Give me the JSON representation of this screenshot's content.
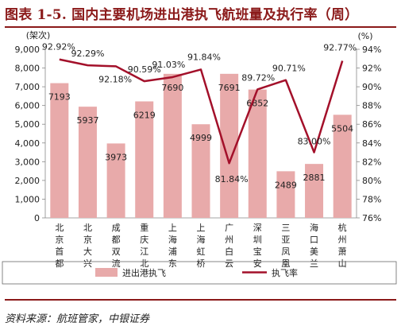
{
  "title": "图表 1-5. 国内主要机场进出港执飞航班量及执行率（周）",
  "source": "资料来源：航班管家，中银证券",
  "chart_data": {
    "type": "bar",
    "categories": [
      "北京首都",
      "北京大兴",
      "成都双流",
      "重庆江北",
      "上海浦东",
      "上海虹桥",
      "广州白云",
      "深圳宝安",
      "三亚凤凰",
      "海口美兰",
      "杭州萧山"
    ],
    "series": [
      {
        "name": "进出港执飞",
        "type": "bar",
        "axis": "left",
        "color": "#e8aaaa",
        "values": [
          7193,
          5937,
          3973,
          6219,
          7690,
          4999,
          7691,
          6852,
          2489,
          2881,
          5504
        ],
        "labels": [
          "7193",
          "5937",
          "3973",
          "6219",
          "7690",
          "4999",
          "7691",
          "6852",
          "2489",
          "2881",
          "5504"
        ]
      },
      {
        "name": "执飞率",
        "type": "line",
        "axis": "right",
        "color": "#a3102a",
        "values": [
          92.92,
          92.29,
          92.18,
          90.59,
          91.03,
          91.84,
          81.84,
          89.72,
          90.71,
          83.0,
          92.77
        ],
        "labels": [
          "92.92%",
          "92.29%",
          "92.18%",
          "90.59%",
          "91.03%",
          "91.84%",
          "81.84%",
          "89.72%",
          "90.71%",
          "83.00%",
          "92.77%"
        ]
      }
    ],
    "yleft": {
      "label": "(架次)",
      "min": 0,
      "max": 9000,
      "step": 1000,
      "ticks": [
        "0",
        "1,000",
        "2,000",
        "3,000",
        "4,000",
        "5,000",
        "6,000",
        "7,000",
        "8,000",
        "9,000"
      ]
    },
    "yright": {
      "label": "(%)",
      "min": 76,
      "max": 94,
      "step": 2,
      "ticks": [
        "76%",
        "78%",
        "80%",
        "82%",
        "84%",
        "86%",
        "88%",
        "90%",
        "92%",
        "94%"
      ]
    },
    "grid": false,
    "legend": "bottom"
  }
}
